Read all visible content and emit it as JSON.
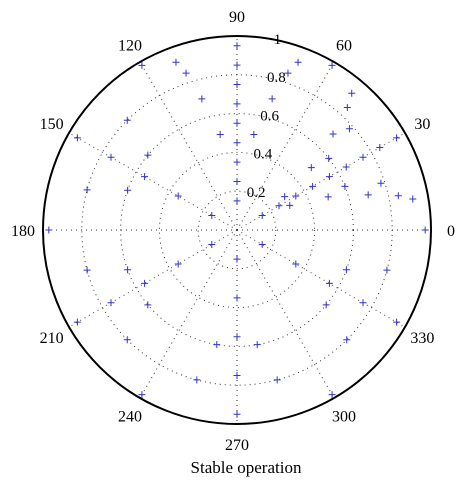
{
  "chart_data": {
    "type": "scatter",
    "coordinate_system": "polar",
    "title": "Stable operation",
    "marker": "+",
    "marker_color": "#3333cc",
    "grid": true,
    "grid_style": "dotted",
    "angle_tick_labels": [
      "0",
      "30",
      "60",
      "90",
      "120",
      "150",
      "180",
      "210",
      "240",
      "270",
      "300",
      "330"
    ],
    "radial_tick_labels": [
      "0.2",
      "0.4",
      "0.6",
      "0.8",
      "1"
    ],
    "radial_ticks": [
      0.2,
      0.4,
      0.6,
      0.8,
      1.0
    ],
    "radial_label_angle_deg": 80,
    "rlim": [
      0,
      1
    ],
    "series": [
      {
        "symmetry_fold": 6,
        "lobe_centers_deg": [
          30,
          90,
          150,
          210,
          270,
          330
        ],
        "approx_radial_extent": [
          0.1,
          1.0
        ],
        "approx_lobe_half_width_deg": 28,
        "points_theta_r": [
          [
            30,
            0.15
          ],
          [
            30,
            0.25
          ],
          [
            30,
            0.35
          ],
          [
            30,
            0.45
          ],
          [
            30,
            0.55
          ],
          [
            30,
            0.65
          ],
          [
            30,
            0.75
          ],
          [
            30,
            0.85
          ],
          [
            30,
            0.95
          ],
          [
            20,
            0.5
          ],
          [
            40,
            0.5
          ],
          [
            15,
            0.7
          ],
          [
            45,
            0.7
          ],
          [
            12,
            0.85
          ],
          [
            48,
            0.85
          ],
          [
            10,
            0.92
          ],
          [
            50,
            0.92
          ],
          [
            25,
            0.3
          ],
          [
            35,
            0.3
          ],
          [
            22,
            0.6
          ],
          [
            38,
            0.6
          ],
          [
            18,
            0.78
          ],
          [
            42,
            0.78
          ],
          [
            90,
            0.15
          ],
          [
            90,
            0.25
          ],
          [
            90,
            0.35
          ],
          [
            90,
            0.45
          ],
          [
            90,
            0.55
          ],
          [
            90,
            0.65
          ],
          [
            90,
            0.75
          ],
          [
            90,
            0.85
          ],
          [
            90,
            0.95
          ],
          [
            80,
            0.5
          ],
          [
            100,
            0.5
          ],
          [
            75,
            0.7
          ],
          [
            105,
            0.7
          ],
          [
            72,
            0.85
          ],
          [
            108,
            0.85
          ],
          [
            70,
            0.92
          ],
          [
            110,
            0.92
          ],
          [
            150,
            0.15
          ],
          [
            150,
            0.35
          ],
          [
            150,
            0.55
          ],
          [
            150,
            0.75
          ],
          [
            150,
            0.95
          ],
          [
            140,
            0.6
          ],
          [
            160,
            0.6
          ],
          [
            135,
            0.8
          ],
          [
            165,
            0.8
          ],
          [
            210,
            0.15
          ],
          [
            210,
            0.35
          ],
          [
            210,
            0.55
          ],
          [
            210,
            0.75
          ],
          [
            210,
            0.95
          ],
          [
            200,
            0.6
          ],
          [
            220,
            0.6
          ],
          [
            195,
            0.8
          ],
          [
            225,
            0.8
          ],
          [
            270,
            0.15
          ],
          [
            270,
            0.35
          ],
          [
            270,
            0.55
          ],
          [
            270,
            0.75
          ],
          [
            270,
            0.95
          ],
          [
            260,
            0.6
          ],
          [
            280,
            0.6
          ],
          [
            255,
            0.8
          ],
          [
            285,
            0.8
          ],
          [
            330,
            0.15
          ],
          [
            330,
            0.35
          ],
          [
            330,
            0.55
          ],
          [
            330,
            0.75
          ],
          [
            330,
            0.95
          ],
          [
            320,
            0.6
          ],
          [
            340,
            0.6
          ],
          [
            315,
            0.8
          ],
          [
            345,
            0.8
          ],
          [
            0,
            0.97
          ],
          [
            180,
            0.97
          ],
          [
            60,
            0.98
          ],
          [
            120,
            0.98
          ],
          [
            240,
            0.98
          ],
          [
            300,
            0.98
          ]
        ]
      }
    ]
  }
}
